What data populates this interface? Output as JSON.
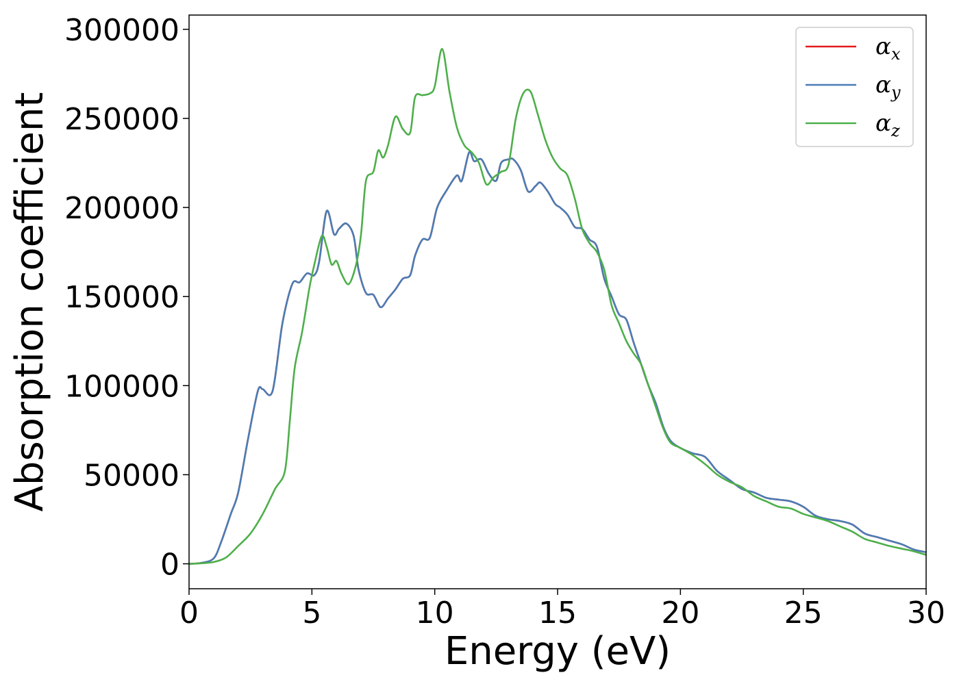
{
  "chart_data": {
    "type": "line",
    "xlabel": "Energy (eV)",
    "ylabel": "Absorption coefficient",
    "xlim": [
      0,
      30
    ],
    "ylim": [
      -14000,
      308000
    ],
    "xticks": [
      0,
      5,
      10,
      15,
      20,
      25,
      30
    ],
    "xtick_labels": [
      "0",
      "5",
      "10",
      "15",
      "20",
      "25",
      "30"
    ],
    "yticks": [
      0,
      50000,
      100000,
      150000,
      200000,
      250000,
      300000
    ],
    "ytick_labels": [
      "0",
      "50000",
      "100000",
      "150000",
      "200000",
      "250000",
      "300000"
    ],
    "grid": false,
    "legend_position": "top-right",
    "series": [
      {
        "name": "αx",
        "legend_symbol": "α",
        "legend_subscript": "x",
        "color": "#e41a1c",
        "x": [
          0,
          0.5,
          1.0,
          1.3,
          1.7,
          2.0,
          2.4,
          2.8,
          3.0,
          3.4,
          3.8,
          4.2,
          4.5,
          4.8,
          5.1,
          5.3,
          5.6,
          5.9,
          6.1,
          6.4,
          6.7,
          6.9,
          7.2,
          7.5,
          7.8,
          8.1,
          8.4,
          8.7,
          9.0,
          9.2,
          9.5,
          9.8,
          10.1,
          10.5,
          10.9,
          11.1,
          11.4,
          11.6,
          11.9,
          12.2,
          12.5,
          12.7,
          13.0,
          13.2,
          13.5,
          13.8,
          14.1,
          14.3,
          14.6,
          14.9,
          15.1,
          15.4,
          15.7,
          16.0,
          16.3,
          16.6,
          16.9,
          17.2,
          17.5,
          17.8,
          18.1,
          18.4,
          18.7,
          19.0,
          19.3,
          19.6,
          20.0,
          20.5,
          21.0,
          21.5,
          22.0,
          22.5,
          23.0,
          23.5,
          24.0,
          24.5,
          25.0,
          25.5,
          26.0,
          26.5,
          27.0,
          27.5,
          28.0,
          28.5,
          29.0,
          29.5,
          30.0
        ],
        "values": [
          0,
          500,
          3000,
          12000,
          28000,
          40000,
          70000,
          97000,
          98000,
          97000,
          135000,
          157000,
          158000,
          163000,
          162000,
          170000,
          198000,
          185000,
          188000,
          191000,
          184000,
          165000,
          152000,
          151000,
          144000,
          149000,
          154000,
          160000,
          162000,
          173000,
          182000,
          183000,
          200000,
          210000,
          218000,
          215000,
          231000,
          226000,
          227000,
          219000,
          215000,
          225000,
          227000,
          227000,
          221000,
          209000,
          212000,
          214000,
          209000,
          202000,
          200000,
          196000,
          189000,
          188000,
          182000,
          178000,
          160000,
          150000,
          140000,
          137000,
          124000,
          112000,
          100000,
          90000,
          77000,
          69000,
          65000,
          62000,
          60000,
          52000,
          47000,
          42000,
          40000,
          37000,
          36000,
          35000,
          32000,
          27000,
          25000,
          24000,
          22000,
          17000,
          15000,
          13000,
          11000,
          8000,
          6500
        ]
      },
      {
        "name": "αy",
        "legend_symbol": "α",
        "legend_subscript": "y",
        "color": "#4a7db5",
        "x": [
          0,
          0.5,
          1.0,
          1.3,
          1.7,
          2.0,
          2.4,
          2.8,
          3.0,
          3.4,
          3.8,
          4.2,
          4.5,
          4.8,
          5.1,
          5.3,
          5.6,
          5.9,
          6.1,
          6.4,
          6.7,
          6.9,
          7.2,
          7.5,
          7.8,
          8.1,
          8.4,
          8.7,
          9.0,
          9.2,
          9.5,
          9.8,
          10.1,
          10.5,
          10.9,
          11.1,
          11.4,
          11.6,
          11.9,
          12.2,
          12.5,
          12.7,
          13.0,
          13.2,
          13.5,
          13.8,
          14.1,
          14.3,
          14.6,
          14.9,
          15.1,
          15.4,
          15.7,
          16.0,
          16.3,
          16.6,
          16.9,
          17.2,
          17.5,
          17.8,
          18.1,
          18.4,
          18.7,
          19.0,
          19.3,
          19.6,
          20.0,
          20.5,
          21.0,
          21.5,
          22.0,
          22.5,
          23.0,
          23.5,
          24.0,
          24.5,
          25.0,
          25.5,
          26.0,
          26.5,
          27.0,
          27.5,
          28.0,
          28.5,
          29.0,
          29.5,
          30.0
        ],
        "values": [
          0,
          500,
          3000,
          12000,
          28000,
          40000,
          70000,
          97000,
          98000,
          97000,
          135000,
          157000,
          158000,
          163000,
          162000,
          170000,
          198000,
          185000,
          188000,
          191000,
          184000,
          165000,
          152000,
          151000,
          144000,
          149000,
          154000,
          160000,
          162000,
          173000,
          182000,
          183000,
          200000,
          210000,
          218000,
          215000,
          231000,
          226000,
          227000,
          219000,
          215000,
          225000,
          227000,
          227000,
          221000,
          209000,
          212000,
          214000,
          209000,
          202000,
          200000,
          196000,
          189000,
          188000,
          182000,
          178000,
          160000,
          150000,
          140000,
          137000,
          124000,
          112000,
          100000,
          90000,
          77000,
          69000,
          65000,
          62000,
          60000,
          52000,
          47000,
          42000,
          40000,
          37000,
          36000,
          35000,
          32000,
          27000,
          25000,
          24000,
          22000,
          17000,
          15000,
          13000,
          11000,
          8000,
          6500
        ]
      },
      {
        "name": "αz",
        "legend_symbol": "α",
        "legend_subscript": "z",
        "color": "#4daf4a",
        "x": [
          0,
          0.5,
          1.0,
          1.5,
          2.0,
          2.5,
          3.0,
          3.5,
          3.9,
          4.1,
          4.3,
          4.6,
          4.9,
          5.1,
          5.4,
          5.6,
          5.8,
          6.0,
          6.2,
          6.5,
          6.8,
          7.0,
          7.2,
          7.5,
          7.7,
          7.9,
          8.1,
          8.4,
          8.7,
          9.0,
          9.2,
          9.5,
          9.8,
          10.0,
          10.3,
          10.6,
          10.9,
          11.2,
          11.5,
          11.8,
          12.1,
          12.4,
          12.7,
          13.0,
          13.3,
          13.6,
          13.9,
          14.2,
          14.5,
          14.8,
          15.1,
          15.4,
          15.7,
          16.0,
          16.3,
          16.6,
          16.9,
          17.2,
          17.5,
          17.8,
          18.1,
          18.4,
          18.7,
          19.0,
          19.3,
          19.6,
          20.0,
          20.5,
          21.0,
          21.5,
          22.0,
          22.5,
          23.0,
          23.5,
          24.0,
          24.5,
          25.0,
          25.5,
          26.0,
          26.5,
          27.0,
          27.5,
          28.0,
          28.5,
          29.0,
          29.5,
          30.0
        ],
        "values": [
          0,
          300,
          1000,
          3500,
          10000,
          17000,
          28000,
          42000,
          52000,
          80000,
          110000,
          130000,
          155000,
          168000,
          184000,
          178000,
          168000,
          170000,
          163000,
          157000,
          168000,
          185000,
          215000,
          220000,
          232000,
          228000,
          235000,
          251000,
          244000,
          242000,
          262000,
          263000,
          264000,
          268000,
          289000,
          265000,
          245000,
          235000,
          231000,
          225000,
          213000,
          217000,
          220000,
          224000,
          250000,
          264000,
          265000,
          252000,
          238000,
          228000,
          222000,
          218000,
          205000,
          188000,
          180000,
          175000,
          165000,
          145000,
          135000,
          125000,
          118000,
          112000,
          100000,
          88000,
          76000,
          68000,
          65000,
          61000,
          56000,
          50000,
          46000,
          43000,
          38000,
          35000,
          32000,
          31000,
          28000,
          26000,
          24000,
          21000,
          18000,
          14000,
          12000,
          10000,
          8500,
          7000,
          5000
        ]
      }
    ]
  }
}
